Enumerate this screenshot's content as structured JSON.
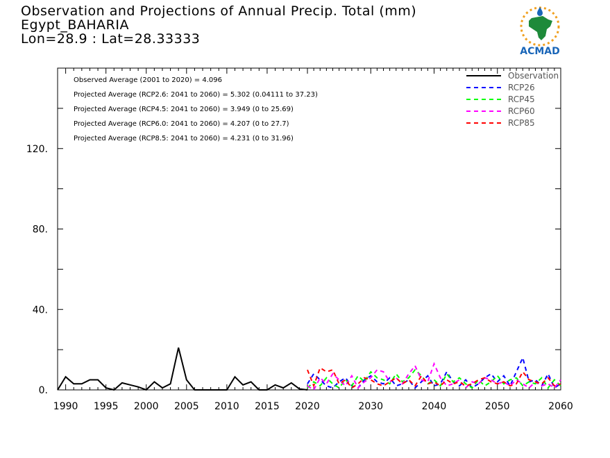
{
  "title": {
    "line1": "Observation and Projections of Annual Precip. Total (mm)",
    "line2": "Egypt_BAHARIA",
    "line3": "Lon=28.9 : Lat=28.33333"
  },
  "logo": {
    "text": "ACMAD",
    "color": "#1a66b8"
  },
  "stats": [
    "Observed Average (2001 to 2020) = 4.096",
    "Projected Average (RCP2.6: 2041 to 2060) = 5.302 (0.04111 to 37.23)",
    "Projected Average (RCP4.5: 2041 to 2060) = 3.949 (0 to 25.69)",
    "Projected Average (RCP6.0: 2041 to 2060) = 4.207 (0 to 27.7)",
    "Projected Average (RCP8.5: 2041 to 2060) = 4.231 (0 to 31.96)"
  ],
  "chart_data": {
    "type": "line",
    "title": "Observation and Projections of Annual Precip. Total (mm)",
    "xlabel": "",
    "ylabel": "",
    "ylim": [
      0,
      160
    ],
    "y_ticks": [
      0,
      40,
      80,
      120
    ],
    "y_tick_labels": [
      "0.",
      "40.",
      "80.",
      "120."
    ],
    "x_ticks": [
      1990,
      1995,
      2000,
      2005,
      2010,
      2015,
      2020,
      2030,
      2040,
      2050,
      2060
    ],
    "x_tick_labels": [
      "1990",
      "1995",
      "2000",
      "2005",
      "2010",
      "2015",
      "2020",
      "2030",
      "2040",
      "2050",
      "2060"
    ],
    "legend_position": "top-right",
    "series": [
      {
        "name": "Observation",
        "color": "#000000",
        "dash": "solid",
        "x": [
          1989,
          1990,
          1991,
          1992,
          1993,
          1994,
          1995,
          1996,
          1997,
          1998,
          1999,
          2000,
          2001,
          2002,
          2003,
          2004,
          2005,
          2006,
          2007,
          2008,
          2009,
          2010,
          2011,
          2012,
          2013,
          2014,
          2015,
          2016,
          2017,
          2018,
          2019,
          2020
        ],
        "y": [
          0,
          6.5,
          3,
          3,
          5,
          5,
          1,
          0,
          3.5,
          2.5,
          1.5,
          0,
          4,
          1,
          3,
          21,
          5,
          0,
          0,
          0,
          0,
          0,
          6.5,
          2.5,
          4,
          0,
          0,
          2.5,
          1,
          3.5,
          0.5,
          0
        ]
      },
      {
        "name": "RCP26",
        "color": "#0000ff",
        "dash": "6,5",
        "x": [
          2020,
          2021,
          2022,
          2023,
          2024,
          2025,
          2026,
          2027,
          2028,
          2029,
          2030,
          2031,
          2032,
          2033,
          2034,
          2035,
          2036,
          2037,
          2038,
          2039,
          2040,
          2041,
          2042,
          2043,
          2044,
          2045,
          2046,
          2047,
          2048,
          2049,
          2050,
          2051,
          2052,
          2053,
          2054,
          2055,
          2056,
          2057,
          2058,
          2059,
          2060
        ],
        "y": [
          3,
          8,
          5,
          2,
          1,
          4,
          6,
          2,
          1,
          5,
          7,
          4,
          3,
          6,
          2,
          3,
          5,
          1,
          4,
          7,
          2,
          3,
          9,
          4,
          2,
          5,
          1,
          3,
          6,
          8,
          4,
          7,
          2,
          9,
          16,
          4,
          5,
          2,
          8,
          1,
          3
        ]
      },
      {
        "name": "RCP45",
        "color": "#00ff00",
        "dash": "6,5",
        "x": [
          2020,
          2021,
          2022,
          2023,
          2024,
          2025,
          2026,
          2027,
          2028,
          2029,
          2030,
          2031,
          2032,
          2033,
          2034,
          2035,
          2036,
          2037,
          2038,
          2039,
          2040,
          2041,
          2042,
          2043,
          2044,
          2045,
          2046,
          2047,
          2048,
          2049,
          2050,
          2051,
          2052,
          2053,
          2054,
          2055,
          2056,
          2057,
          2058,
          2059,
          2060
        ],
        "y": [
          1,
          4,
          2,
          6,
          3,
          1,
          5,
          2,
          7,
          4,
          9,
          6,
          5,
          3,
          8,
          4,
          6,
          10,
          7,
          3,
          5,
          2,
          8,
          4,
          6,
          3,
          1,
          5,
          2,
          4,
          7,
          3,
          5,
          6,
          2,
          4,
          3,
          6,
          1,
          5,
          2
        ]
      },
      {
        "name": "RCP60",
        "color": "#ff00ff",
        "dash": "6,5",
        "x": [
          2020,
          2021,
          2022,
          2023,
          2024,
          2025,
          2026,
          2027,
          2028,
          2029,
          2030,
          2031,
          2032,
          2033,
          2034,
          2035,
          2036,
          2037,
          2038,
          2039,
          2040,
          2041,
          2042,
          2043,
          2044,
          2045,
          2046,
          2047,
          2048,
          2049,
          2050,
          2051,
          2052,
          2053,
          2054,
          2055,
          2056,
          2057,
          2058,
          2059,
          2060
        ],
        "y": [
          2,
          0,
          6,
          3,
          8,
          5,
          2,
          7,
          1,
          4,
          6,
          10,
          9,
          4,
          6,
          3,
          8,
          12,
          5,
          4,
          13,
          6,
          2,
          3,
          5,
          1,
          4,
          3,
          6,
          5,
          3,
          4,
          2,
          5,
          3,
          1,
          4,
          2,
          3,
          1,
          5
        ]
      },
      {
        "name": "RCP85",
        "color": "#ff0000",
        "dash": "6,5",
        "x": [
          2020,
          2021,
          2022,
          2023,
          2024,
          2025,
          2026,
          2027,
          2028,
          2029,
          2030,
          2031,
          2032,
          2033,
          2034,
          2035,
          2036,
          2037,
          2038,
          2039,
          2040,
          2041,
          2042,
          2043,
          2044,
          2045,
          2046,
          2047,
          2048,
          2049,
          2050,
          2051,
          2052,
          2053,
          2054,
          2055,
          2056,
          2057,
          2058,
          2059,
          2060
        ],
        "y": [
          10,
          2,
          11,
          9,
          10,
          3,
          5,
          1,
          3,
          6,
          5,
          3,
          2,
          4,
          6,
          3,
          5,
          2,
          7,
          3,
          4,
          2,
          5,
          3,
          4,
          2,
          3,
          5,
          6,
          4,
          3,
          4,
          2,
          3,
          9,
          5,
          4,
          3,
          6,
          2,
          3
        ]
      }
    ]
  }
}
